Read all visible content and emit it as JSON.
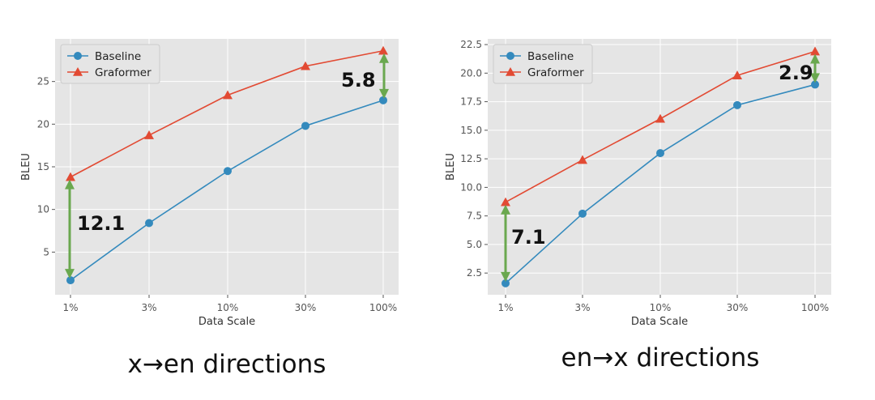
{
  "chart_data": [
    {
      "type": "line",
      "categories": [
        "1%",
        "3%",
        "10%",
        "30%",
        "100%"
      ],
      "series": [
        {
          "name": "Baseline",
          "values": [
            1.7,
            8.4,
            14.5,
            19.8,
            22.8
          ],
          "color": "#348ABD",
          "marker": "circle"
        },
        {
          "name": "Graformer",
          "values": [
            13.8,
            18.7,
            23.4,
            26.8,
            28.6
          ],
          "color": "#E24A33",
          "marker": "triangle"
        }
      ],
      "xlabel": "Data Scale",
      "ylabel": "BLEU",
      "ylim": [
        0,
        30
      ],
      "yticks": [
        5,
        10,
        15,
        20,
        25
      ],
      "ytick_labels": [
        "5",
        "10",
        "15",
        "20",
        "25"
      ],
      "grid": true,
      "legend_position": "top-left",
      "annotations": [
        {
          "text": "12.1",
          "category": "1%",
          "from": 1.7,
          "to": 13.8
        },
        {
          "text": "5.8",
          "category": "100%",
          "from": 22.8,
          "to": 28.6
        }
      ],
      "caption": "x→en directions"
    },
    {
      "type": "line",
      "categories": [
        "1%",
        "3%",
        "10%",
        "30%",
        "100%"
      ],
      "series": [
        {
          "name": "Baseline",
          "values": [
            1.6,
            7.7,
            13.0,
            17.2,
            19.0
          ],
          "color": "#348ABD",
          "marker": "circle"
        },
        {
          "name": "Graformer",
          "values": [
            8.7,
            12.4,
            16.0,
            19.8,
            21.9
          ],
          "color": "#E24A33",
          "marker": "triangle"
        }
      ],
      "xlabel": "Data Scale",
      "ylabel": "BLEU",
      "ylim": [
        0.6,
        23.0
      ],
      "yticks": [
        2.5,
        5.0,
        7.5,
        10.0,
        12.5,
        15.0,
        17.5,
        20.0,
        22.5
      ],
      "ytick_labels": [
        "2.5",
        "5.0",
        "7.5",
        "10.0",
        "12.5",
        "15.0",
        "17.5",
        "20.0",
        "22.5"
      ],
      "grid": true,
      "legend_position": "top-left",
      "annotations": [
        {
          "text": "7.1",
          "category": "1%",
          "from": 1.6,
          "to": 8.7
        },
        {
          "text": "2.9",
          "category": "100%",
          "from": 19.0,
          "to": 21.9
        }
      ],
      "caption": "en→x directions"
    }
  ],
  "colors": {
    "plot_bg": "#E5E5E5",
    "grid": "#FFFFFF",
    "arrow": "#6AA84F"
  }
}
